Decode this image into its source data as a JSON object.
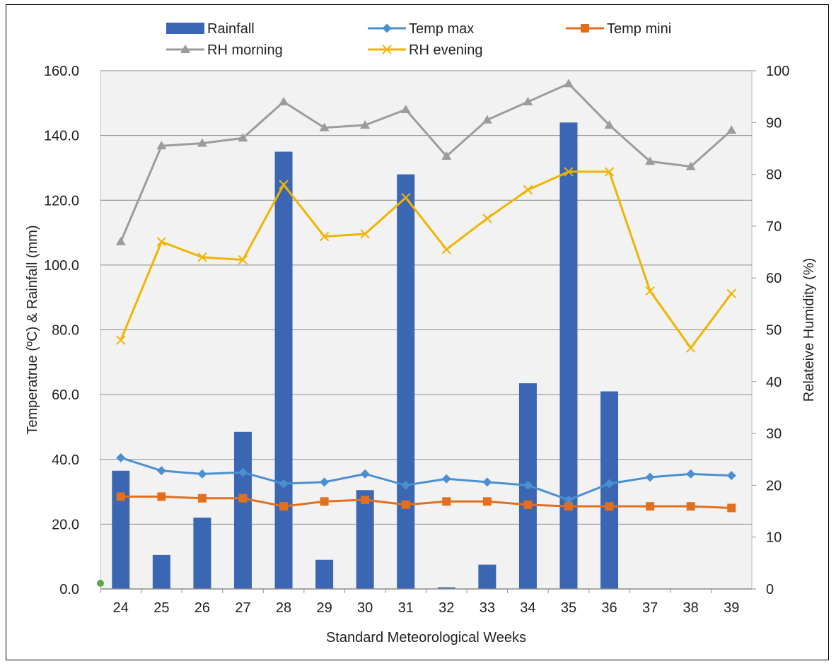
{
  "chart_data": {
    "type": "bar",
    "title": "",
    "xlabel": "Standard Meteorological Weeks",
    "ylabel": "Temperatrue (ºC) & Rainfall (mm)",
    "y2label": "Relateive Humidity (%)",
    "categories": [
      "24",
      "25",
      "26",
      "27",
      "28",
      "29",
      "30",
      "31",
      "32",
      "33",
      "34",
      "35",
      "36",
      "37",
      "38",
      "39"
    ],
    "ylim": [
      0,
      160
    ],
    "y2lim": [
      0,
      100
    ],
    "yticks": [
      "0.0",
      "20.0",
      "40.0",
      "60.0",
      "80.0",
      "100.0",
      "120.0",
      "140.0",
      "160.0"
    ],
    "y2ticks": [
      "0",
      "10",
      "20",
      "30",
      "40",
      "50",
      "60",
      "70",
      "80",
      "90",
      "100"
    ],
    "grid": true,
    "legend_position": "top",
    "series": [
      {
        "name": "Rainfall",
        "type": "bar",
        "axis": "left",
        "color": "#3a66b4",
        "values": [
          36.5,
          10.5,
          22.0,
          48.5,
          135.0,
          9.0,
          30.5,
          128.0,
          0.5,
          7.5,
          63.5,
          144.0,
          61.0,
          0,
          0,
          0
        ]
      },
      {
        "name": "Temp max",
        "type": "line",
        "axis": "left",
        "color": "#4a8fd0",
        "marker": "diamond",
        "values": [
          40.5,
          36.5,
          35.5,
          36.0,
          32.5,
          33.0,
          35.5,
          32.0,
          34.0,
          33.0,
          32.0,
          27.5,
          32.5,
          34.5,
          35.5,
          35.0
        ]
      },
      {
        "name": "Temp mini",
        "type": "line",
        "axis": "left",
        "color": "#e26f1e",
        "marker": "square",
        "values": [
          28.5,
          28.5,
          28.0,
          28.0,
          25.5,
          27.0,
          27.5,
          26.0,
          27.0,
          27.0,
          26.0,
          25.5,
          25.5,
          25.5,
          25.5,
          25.0
        ]
      },
      {
        "name": "RH morning",
        "type": "line",
        "axis": "right",
        "color": "#9c9c9c",
        "marker": "triangle",
        "values": [
          67.0,
          85.5,
          86.0,
          87.0,
          94.0,
          89.0,
          89.5,
          92.5,
          83.5,
          90.5,
          94.0,
          97.5,
          89.5,
          82.5,
          81.5,
          88.5
        ]
      },
      {
        "name": "RH evening",
        "type": "line",
        "axis": "right",
        "color": "#f0b400",
        "marker": "x",
        "values": [
          48.0,
          67.0,
          64.0,
          63.5,
          78.0,
          68.0,
          68.5,
          75.5,
          65.5,
          71.5,
          77.0,
          80.5,
          80.5,
          57.5,
          46.5,
          57.0
        ]
      }
    ]
  }
}
